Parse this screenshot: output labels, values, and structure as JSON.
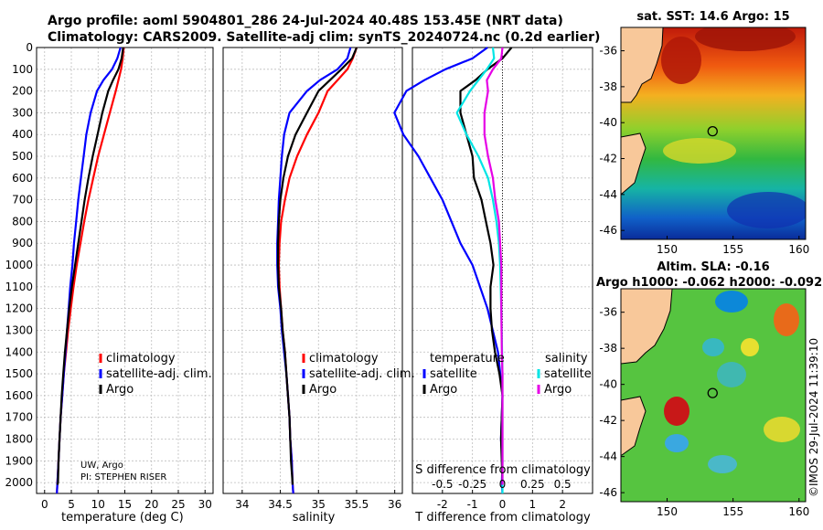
{
  "header": {
    "line1": "Argo profile: aoml 5904801_286 24-Jul-2024 40.48S 153.45E (NRT data)",
    "line2": "Climatology: CARS2009. Satellite-adj clim: synTS_20240724.nc (0.2d earlier)"
  },
  "credit": {
    "line1": "UW, Argo",
    "line2": "PI: STEPHEN RISER"
  },
  "copyright": "©IMOS 29-Jul-2024 11:39:10",
  "colors": {
    "climatology": "#ff0000",
    "satellite": "#0000ff",
    "argo": "#000000",
    "satellite_s": "#00e5e5",
    "argo_s": "#e600e6"
  },
  "chart_data": [
    {
      "type": "line",
      "panel": "temperature",
      "xlabel": "temperature (deg C)",
      "xlim": [
        -1.5,
        31.5
      ],
      "xticks": [
        0,
        5,
        10,
        15,
        20,
        25,
        30
      ],
      "ylim": [
        2050,
        0
      ],
      "yticks": [
        0,
        100,
        200,
        300,
        400,
        500,
        600,
        700,
        800,
        900,
        1000,
        1100,
        1200,
        1300,
        1400,
        1500,
        1600,
        1700,
        1800,
        1900,
        2000
      ],
      "legend": [
        "climatology",
        "satellite-adj. clim.",
        "Argo"
      ],
      "series": [
        {
          "name": "climatology",
          "color": "#ff0000",
          "depth": [
            0,
            50,
            100,
            150,
            200,
            300,
            400,
            500,
            600,
            700,
            800,
            900,
            1000,
            1100,
            1200,
            1300,
            1400,
            1500,
            1600,
            1700,
            1800,
            1900,
            2000,
            2050
          ],
          "values": [
            14.8,
            14.6,
            14.3,
            13.8,
            13.3,
            12.2,
            11.1,
            10.0,
            9.1,
            8.2,
            7.4,
            6.7,
            6.0,
            5.4,
            4.9,
            4.4,
            4.0,
            3.6,
            3.3,
            3.0,
            2.8,
            2.6,
            2.4,
            2.3
          ]
        },
        {
          "name": "satellite-adj. clim.",
          "color": "#0000ff",
          "depth": [
            0,
            50,
            100,
            150,
            200,
            300,
            400,
            500,
            600,
            700,
            800,
            900,
            1000,
            1100,
            1200,
            1300,
            1400,
            1500,
            1600,
            1700,
            1800,
            1900,
            2000,
            2050
          ],
          "values": [
            14.2,
            13.6,
            12.6,
            11.0,
            9.8,
            8.6,
            7.8,
            7.3,
            6.8,
            6.3,
            5.9,
            5.5,
            5.2,
            4.8,
            4.5,
            4.2,
            3.9,
            3.6,
            3.3,
            3.0,
            2.8,
            2.6,
            2.4,
            2.3
          ]
        },
        {
          "name": "Argo",
          "color": "#000000",
          "depth": [
            0,
            50,
            100,
            150,
            200,
            300,
            400,
            500,
            600,
            700,
            800,
            900,
            1000,
            1100,
            1200,
            1300,
            1400,
            1500,
            1600,
            1700,
            1800,
            1900,
            2000,
            2010
          ],
          "values": [
            14.7,
            14.4,
            13.8,
            12.8,
            11.9,
            10.8,
            9.9,
            9.0,
            8.2,
            7.5,
            6.9,
            6.3,
            5.7,
            5.1,
            4.6,
            4.2,
            3.8,
            3.5,
            3.2,
            3.0,
            2.8,
            2.6,
            2.5,
            2.4
          ]
        }
      ]
    },
    {
      "type": "line",
      "panel": "salinity",
      "xlabel": "salinity",
      "xlim": [
        33.75,
        36.1
      ],
      "xticks": [
        34,
        34.5,
        35,
        35.5,
        36
      ],
      "ylim": [
        2050,
        0
      ],
      "legend": [
        "climatology",
        "satellite-adj. clim.",
        "Argo"
      ],
      "series": [
        {
          "name": "climatology",
          "color": "#ff0000",
          "depth": [
            0,
            50,
            100,
            150,
            200,
            300,
            400,
            500,
            600,
            700,
            800,
            900,
            1000,
            1100,
            1200,
            1300,
            1400,
            1500,
            1600,
            1700,
            1800,
            1900,
            2000,
            2050
          ],
          "values": [
            35.5,
            35.45,
            35.38,
            35.25,
            35.12,
            35.0,
            34.85,
            34.72,
            34.62,
            34.56,
            34.51,
            34.49,
            34.48,
            34.49,
            34.51,
            34.53,
            34.56,
            34.58,
            34.6,
            34.62,
            34.63,
            34.65,
            34.66,
            34.67
          ]
        },
        {
          "name": "satellite-adj. clim.",
          "color": "#0000ff",
          "depth": [
            0,
            50,
            100,
            150,
            200,
            300,
            400,
            500,
            600,
            700,
            800,
            900,
            1000,
            1100,
            1200,
            1300,
            1400,
            1500,
            1600,
            1700,
            1800,
            1900,
            2000,
            2050
          ],
          "values": [
            35.42,
            35.38,
            35.25,
            35.02,
            34.85,
            34.62,
            34.55,
            34.52,
            34.5,
            34.48,
            34.47,
            34.46,
            34.46,
            34.47,
            34.5,
            34.52,
            34.55,
            34.58,
            34.6,
            34.62,
            34.63,
            34.65,
            34.66,
            34.67
          ]
        },
        {
          "name": "Argo",
          "color": "#000000",
          "depth": [
            0,
            50,
            100,
            150,
            200,
            300,
            400,
            500,
            600,
            700,
            800,
            900,
            1000,
            1100,
            1200,
            1300,
            1400,
            1500,
            1600,
            1700,
            1800,
            1900,
            2000,
            2010
          ],
          "values": [
            35.5,
            35.44,
            35.3,
            35.15,
            35.0,
            34.85,
            34.7,
            34.6,
            34.54,
            34.5,
            34.48,
            34.47,
            34.47,
            34.48,
            34.51,
            34.53,
            34.56,
            34.58,
            34.6,
            34.62,
            34.63,
            34.64,
            34.66,
            34.66
          ]
        }
      ]
    },
    {
      "type": "line",
      "panel": "difference",
      "xlabel": "T difference from climatology",
      "top_label": "S difference from climatology",
      "xlim": [
        -3,
        3
      ],
      "xticks": [
        -2,
        -1,
        0,
        1,
        2
      ],
      "top_ticks": [
        "-0.5",
        "-0.25",
        "0",
        "0.25",
        "0.5"
      ],
      "ylim": [
        2050,
        0
      ],
      "legend_t_title": "temperature",
      "legend_s_title": "salinity",
      "legend_t": [
        "satellite",
        "Argo"
      ],
      "legend_s": [
        "satellite",
        "Argo"
      ],
      "series": [
        {
          "name": "T satellite",
          "color": "#0000ff",
          "depth": [
            0,
            50,
            100,
            150,
            200,
            300,
            400,
            500,
            600,
            700,
            800,
            900,
            1000,
            1200,
            1400,
            1600,
            1800,
            1900,
            2000,
            2050
          ],
          "values": [
            -0.5,
            -1.0,
            -1.9,
            -2.6,
            -3.2,
            -3.6,
            -3.3,
            -2.8,
            -2.4,
            -2.0,
            -1.7,
            -1.4,
            -1.0,
            -0.5,
            -0.15,
            0.0,
            -0.05,
            0.0,
            -0.02,
            0.0
          ]
        },
        {
          "name": "T Argo",
          "color": "#000000",
          "depth": [
            0,
            50,
            100,
            150,
            200,
            300,
            400,
            500,
            600,
            700,
            800,
            900,
            1000,
            1100,
            1200,
            1300,
            1400,
            1500,
            1600,
            1800,
            2000,
            2010
          ],
          "values": [
            0.3,
            0.0,
            -0.5,
            -0.9,
            -1.4,
            -1.4,
            -1.2,
            -1.0,
            -0.95,
            -0.7,
            -0.55,
            -0.4,
            -0.3,
            -0.4,
            -0.4,
            -0.35,
            -0.25,
            -0.1,
            0.0,
            -0.05,
            0.0,
            0.0
          ]
        },
        {
          "name": "S satellite",
          "color": "#00e5e5",
          "depth": [
            0,
            50,
            100,
            200,
            300,
            400,
            500,
            600,
            700,
            800,
            900,
            1000,
            1200,
            1500,
            1800,
            2000,
            2050
          ],
          "values": [
            -0.08,
            -0.07,
            -0.13,
            -0.27,
            -0.38,
            -0.3,
            -0.2,
            -0.12,
            -0.08,
            -0.05,
            -0.03,
            -0.02,
            -0.01,
            0.0,
            0.0,
            0.0,
            0.0
          ]
        },
        {
          "name": "S Argo",
          "color": "#e600e6",
          "depth": [
            0,
            50,
            100,
            150,
            200,
            300,
            400,
            500,
            600,
            700,
            800,
            900,
            1000,
            1200,
            1400,
            1500,
            1600,
            1800,
            2000,
            2010
          ],
          "values": [
            0.0,
            -0.01,
            -0.08,
            -0.13,
            -0.12,
            -0.15,
            -0.15,
            -0.12,
            -0.08,
            -0.06,
            -0.03,
            -0.02,
            -0.01,
            -0.01,
            -0.005,
            0.0,
            0.0,
            0.0,
            0.0,
            0.0
          ]
        }
      ]
    },
    {
      "type": "heatmap",
      "panel": "map_sst",
      "title": "sat. SST: 14.6 Argo: 15",
      "xlim": [
        146.5,
        160.5
      ],
      "ylim": [
        -46.5,
        -34.7
      ],
      "xticks": [
        150,
        155,
        160
      ],
      "yticks": [
        -36,
        -38,
        -40,
        -42,
        -44,
        -46
      ],
      "argo_position": {
        "lon": 153.45,
        "lat": -40.48
      }
    },
    {
      "type": "heatmap",
      "panel": "map_sla",
      "title_line1": "Altim. SLA: -0.16",
      "title_line2": "Argo h1000: -0.062 h2000: -0.092",
      "xlim": [
        146.5,
        160.5
      ],
      "ylim": [
        -46.5,
        -34.7
      ],
      "xticks": [
        150,
        155,
        160
      ],
      "yticks": [
        -36,
        -38,
        -40,
        -42,
        -44,
        -46
      ],
      "argo_position": {
        "lon": 153.45,
        "lat": -40.48
      }
    }
  ]
}
